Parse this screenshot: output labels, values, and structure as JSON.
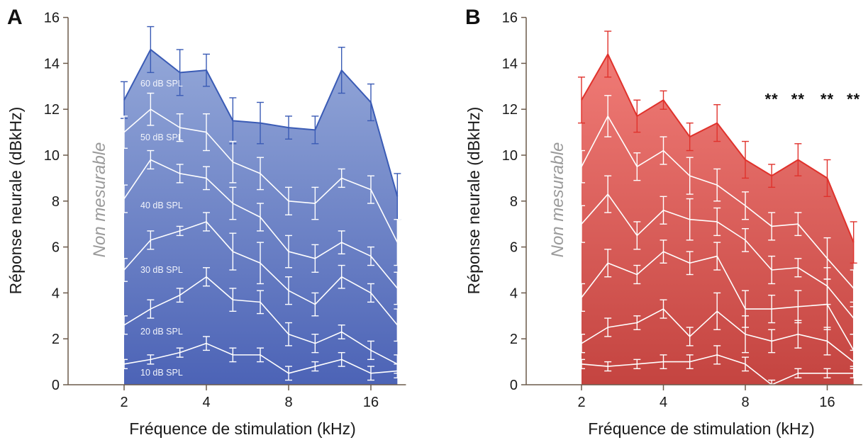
{
  "chart_data": [
    {
      "type": "area",
      "panel_label": "A",
      "xlabel": "Fréquence de stimulation (kHz)",
      "ylabel": "Réponse neurale (dBkHz)",
      "x_scale": "log2",
      "xlim": [
        1.1,
        21.5
      ],
      "ylim": [
        0,
        16
      ],
      "x_ticks": [
        2,
        4,
        8,
        16
      ],
      "y_ticks": [
        0,
        2,
        4,
        6,
        8,
        10,
        12,
        14,
        16
      ],
      "annotation": "Non mesurable",
      "x": [
        2,
        2.5,
        3.2,
        4,
        5,
        6.3,
        8,
        10,
        12.5,
        16,
        20
      ],
      "colors": {
        "top": "#3a5bb5",
        "fill_light": "#93a7d8",
        "fill_dark": "#4c63b6",
        "inner": "#ffffff"
      },
      "series": [
        {
          "name": "60 dB SPL",
          "values": [
            12.4,
            14.6,
            13.6,
            13.7,
            11.5,
            11.4,
            11.2,
            11.1,
            13.7,
            12.3,
            8.2
          ],
          "errors": [
            0.8,
            1.0,
            1.0,
            0.7,
            1.0,
            0.9,
            0.5,
            0.6,
            1.0,
            0.8,
            1.0
          ]
        },
        {
          "name": "50 dB SPL",
          "values": [
            11.0,
            12.0,
            11.2,
            11.0,
            9.7,
            9.2,
            8.0,
            7.9,
            9.0,
            8.5,
            6.2
          ],
          "errors": [
            0.7,
            0.7,
            0.6,
            0.8,
            0.9,
            0.7,
            0.6,
            0.7,
            0.4,
            0.6,
            1.0
          ]
        },
        {
          "name": "40 dB SPL",
          "values": [
            8.1,
            9.8,
            9.2,
            9.0,
            7.9,
            7.3,
            5.8,
            5.5,
            6.2,
            5.6,
            4.2
          ],
          "errors": [
            0.6,
            0.4,
            0.4,
            0.5,
            0.7,
            0.6,
            0.7,
            0.6,
            0.5,
            0.4,
            0.7
          ]
        },
        {
          "name": "30 dB SPL",
          "values": [
            5.0,
            6.3,
            6.7,
            7.1,
            5.8,
            5.3,
            4.1,
            3.5,
            4.7,
            4.0,
            2.6
          ],
          "errors": [
            0.5,
            0.4,
            0.2,
            0.4,
            0.8,
            0.9,
            0.6,
            0.5,
            0.5,
            0.4,
            0.7
          ]
        },
        {
          "name": "20 dB SPL",
          "values": [
            2.6,
            3.3,
            3.9,
            4.7,
            3.7,
            3.6,
            2.2,
            1.8,
            2.3,
            1.5,
            0.9
          ],
          "errors": [
            0.4,
            0.4,
            0.3,
            0.4,
            0.5,
            0.5,
            0.5,
            0.4,
            0.3,
            0.4,
            0.4
          ]
        },
        {
          "name": "10 dB SPL",
          "values": [
            0.9,
            1.1,
            1.4,
            1.8,
            1.3,
            1.3,
            0.5,
            0.8,
            1.1,
            0.5,
            0.6
          ],
          "errors": [
            0.2,
            0.2,
            0.2,
            0.3,
            0.3,
            0.3,
            0.3,
            0.2,
            0.3,
            0.3,
            0.3
          ]
        }
      ]
    },
    {
      "type": "area",
      "panel_label": "B",
      "xlabel": "Fréquence de stimulation (kHz)",
      "ylabel": "Réponse neurale (dBkHz)",
      "x_scale": "log2",
      "xlim": [
        1.1,
        21.5
      ],
      "ylim": [
        0,
        16
      ],
      "x_ticks": [
        2,
        4,
        8,
        16
      ],
      "y_ticks": [
        0,
        2,
        4,
        6,
        8,
        10,
        12,
        14,
        16
      ],
      "annotation": "Non mesurable",
      "significance": {
        "text": "**",
        "x": [
          10,
          12.5,
          16,
          20
        ],
        "y": 12.2
      },
      "x": [
        2,
        2.5,
        3.2,
        4,
        5,
        6.3,
        8,
        10,
        12.5,
        16,
        20
      ],
      "colors": {
        "top": "#e0322c",
        "fill_light": "#f07b76",
        "fill_dark": "#c44440",
        "inner": "#ffffff"
      },
      "series": [
        {
          "name": "",
          "values": [
            12.4,
            14.4,
            11.7,
            12.4,
            10.8,
            11.4,
            9.8,
            9.1,
            9.8,
            9.0,
            6.2
          ],
          "errors": [
            1.0,
            1.0,
            0.7,
            0.4,
            0.6,
            0.8,
            0.8,
            0.5,
            0.7,
            0.8,
            0.9
          ]
        },
        {
          "name": "",
          "values": [
            9.5,
            11.7,
            9.5,
            10.2,
            9.1,
            8.7,
            7.8,
            6.9,
            7.0,
            5.5,
            4.2
          ],
          "errors": [
            0.7,
            0.9,
            0.6,
            0.6,
            0.8,
            0.7,
            0.6,
            0.6,
            0.5,
            0.9,
            0.8
          ]
        },
        {
          "name": "",
          "values": [
            7.0,
            8.3,
            6.5,
            7.6,
            7.2,
            7.1,
            6.3,
            5.0,
            5.1,
            4.3,
            2.9
          ],
          "errors": [
            0.8,
            0.8,
            0.6,
            0.6,
            0.9,
            0.6,
            0.5,
            0.6,
            0.4,
            0.8,
            0.7
          ]
        },
        {
          "name": "",
          "values": [
            3.8,
            5.3,
            4.8,
            5.8,
            5.3,
            5.6,
            3.3,
            3.3,
            3.4,
            3.5,
            1.5
          ],
          "errors": [
            0.6,
            0.6,
            0.4,
            0.5,
            0.5,
            0.6,
            0.8,
            0.6,
            0.7,
            1.1,
            0.7
          ]
        },
        {
          "name": "",
          "values": [
            1.8,
            2.5,
            2.7,
            3.3,
            2.1,
            3.2,
            2.2,
            1.9,
            2.2,
            1.9,
            1.0
          ],
          "errors": [
            0.4,
            0.4,
            0.3,
            0.4,
            0.4,
            0.8,
            0.8,
            0.5,
            0.6,
            0.6,
            0.5
          ]
        },
        {
          "name": "",
          "values": [
            0.9,
            0.8,
            0.9,
            1.0,
            1.0,
            1.3,
            0.9,
            0.0,
            0.5,
            0.5,
            0.5
          ],
          "errors": [
            0.2,
            0.2,
            0.2,
            0.3,
            0.3,
            0.4,
            0.3,
            0.2,
            0.2,
            0.2,
            0.2
          ]
        }
      ]
    }
  ]
}
